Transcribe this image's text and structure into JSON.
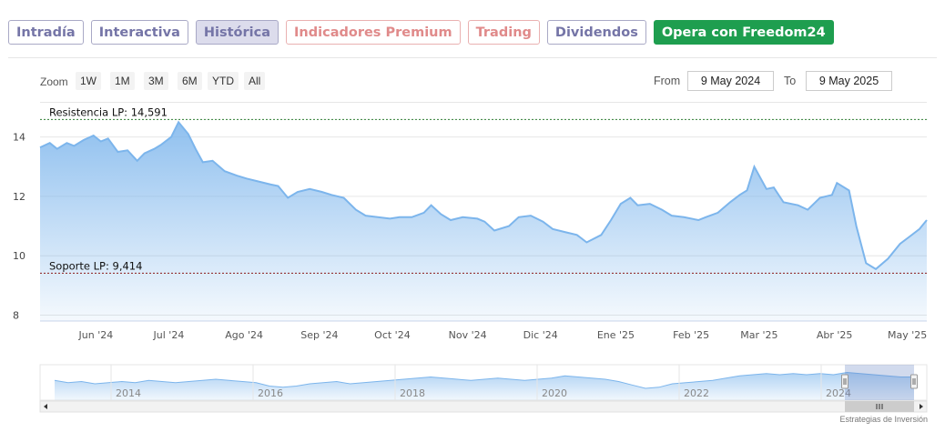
{
  "tabs": [
    {
      "label": "Intradía",
      "style": "normal"
    },
    {
      "label": "Interactiva",
      "style": "normal"
    },
    {
      "label": "Histórica",
      "style": "active"
    },
    {
      "label": "Indicadores Premium",
      "style": "red"
    },
    {
      "label": "Trading",
      "style": "red"
    },
    {
      "label": "Dividendos",
      "style": "normal"
    },
    {
      "label": "Opera con Freedom24",
      "style": "cta"
    }
  ],
  "toolbar": {
    "zoom_label": "Zoom",
    "zoom_buttons": [
      "1W",
      "1M",
      "3M",
      "6M",
      "YTD",
      "All"
    ],
    "from_label": "From",
    "from_value": "9 May 2024",
    "to_label": "To",
    "to_value": "9 May 2025"
  },
  "credit": "Estrategias de Inversión",
  "colors": {
    "line": "#7cb5ec",
    "accent_green": "#1e9e4f",
    "resistance": "#2e7d32",
    "support": "#8b1a1a"
  },
  "chart_data": {
    "type": "area",
    "y_ticks": [
      8,
      10,
      12,
      14
    ],
    "ylim": [
      7.8,
      15.0
    ],
    "x_ticks": [
      "Jun '24",
      "Jul '24",
      "Ago '24",
      "Sep '24",
      "Oct '24",
      "Nov '24",
      "Dic '24",
      "Ene '25",
      "Feb '25",
      "Mar '25",
      "Abr '25",
      "May '25"
    ],
    "resistance": {
      "label": "Resistencia LP: 14,591",
      "value": 14.591
    },
    "support": {
      "label": "Soporte LP: 9,414",
      "value": 9.414
    },
    "series": [
      {
        "points": [
          [
            "2024-05-09",
            13.65
          ],
          [
            "2024-05-13",
            13.8
          ],
          [
            "2024-05-16",
            13.6
          ],
          [
            "2024-05-20",
            13.8
          ],
          [
            "2024-05-23",
            13.7
          ],
          [
            "2024-05-27",
            13.9
          ],
          [
            "2024-05-31",
            14.05
          ],
          [
            "2024-06-03",
            13.85
          ],
          [
            "2024-06-06",
            13.95
          ],
          [
            "2024-06-10",
            13.5
          ],
          [
            "2024-06-14",
            13.55
          ],
          [
            "2024-06-18",
            13.2
          ],
          [
            "2024-06-21",
            13.45
          ],
          [
            "2024-06-25",
            13.6
          ],
          [
            "2024-06-28",
            13.75
          ],
          [
            "2024-07-02",
            14.0
          ],
          [
            "2024-07-05",
            14.5
          ],
          [
            "2024-07-09",
            14.1
          ],
          [
            "2024-07-12",
            13.6
          ],
          [
            "2024-07-15",
            13.15
          ],
          [
            "2024-07-19",
            13.2
          ],
          [
            "2024-07-24",
            12.85
          ],
          [
            "2024-07-29",
            12.7
          ],
          [
            "2024-08-02",
            12.6
          ],
          [
            "2024-08-07",
            12.5
          ],
          [
            "2024-08-12",
            12.4
          ],
          [
            "2024-08-15",
            12.35
          ],
          [
            "2024-08-19",
            11.95
          ],
          [
            "2024-08-23",
            12.15
          ],
          [
            "2024-08-28",
            12.25
          ],
          [
            "2024-09-02",
            12.15
          ],
          [
            "2024-09-06",
            12.05
          ],
          [
            "2024-09-11",
            11.95
          ],
          [
            "2024-09-16",
            11.55
          ],
          [
            "2024-09-20",
            11.35
          ],
          [
            "2024-09-25",
            11.3
          ],
          [
            "2024-09-30",
            11.25
          ],
          [
            "2024-10-04",
            11.3
          ],
          [
            "2024-10-09",
            11.3
          ],
          [
            "2024-10-14",
            11.45
          ],
          [
            "2024-10-17",
            11.7
          ],
          [
            "2024-10-21",
            11.4
          ],
          [
            "2024-10-25",
            11.2
          ],
          [
            "2024-10-30",
            11.3
          ],
          [
            "2024-11-05",
            11.25
          ],
          [
            "2024-11-08",
            11.15
          ],
          [
            "2024-11-12",
            10.85
          ],
          [
            "2024-11-18",
            11.0
          ],
          [
            "2024-11-22",
            11.3
          ],
          [
            "2024-11-27",
            11.35
          ],
          [
            "2024-12-02",
            11.15
          ],
          [
            "2024-12-06",
            10.9
          ],
          [
            "2024-12-11",
            10.8
          ],
          [
            "2024-12-16",
            10.7
          ],
          [
            "2024-12-20",
            10.45
          ],
          [
            "2024-12-26",
            10.7
          ],
          [
            "2024-12-30",
            11.2
          ],
          [
            "2025-01-03",
            11.75
          ],
          [
            "2025-01-07",
            11.95
          ],
          [
            "2025-01-10",
            11.7
          ],
          [
            "2025-01-15",
            11.75
          ],
          [
            "2025-01-20",
            11.55
          ],
          [
            "2025-01-24",
            11.35
          ],
          [
            "2025-01-29",
            11.3
          ],
          [
            "2025-02-04",
            11.2
          ],
          [
            "2025-02-07",
            11.3
          ],
          [
            "2025-02-12",
            11.45
          ],
          [
            "2025-02-17",
            11.8
          ],
          [
            "2025-02-21",
            12.05
          ],
          [
            "2025-02-24",
            12.2
          ],
          [
            "2025-02-27",
            13.0
          ],
          [
            "2025-03-04",
            12.25
          ],
          [
            "2025-03-07",
            12.3
          ],
          [
            "2025-03-11",
            11.8
          ],
          [
            "2025-03-17",
            11.7
          ],
          [
            "2025-03-21",
            11.55
          ],
          [
            "2025-03-26",
            11.95
          ],
          [
            "2025-03-31",
            12.05
          ],
          [
            "2025-04-02",
            12.45
          ],
          [
            "2025-04-07",
            12.2
          ],
          [
            "2025-04-10",
            11.0
          ],
          [
            "2025-04-14",
            9.75
          ],
          [
            "2025-04-18",
            9.55
          ],
          [
            "2025-04-23",
            9.9
          ],
          [
            "2025-04-28",
            10.4
          ],
          [
            "2025-05-02",
            10.65
          ],
          [
            "2025-05-06",
            10.9
          ],
          [
            "2025-05-09",
            11.2
          ]
        ]
      }
    ],
    "navigator": {
      "x_ticks": [
        "2014",
        "2016",
        "2018",
        "2020",
        "2022",
        "2024"
      ]
    }
  }
}
